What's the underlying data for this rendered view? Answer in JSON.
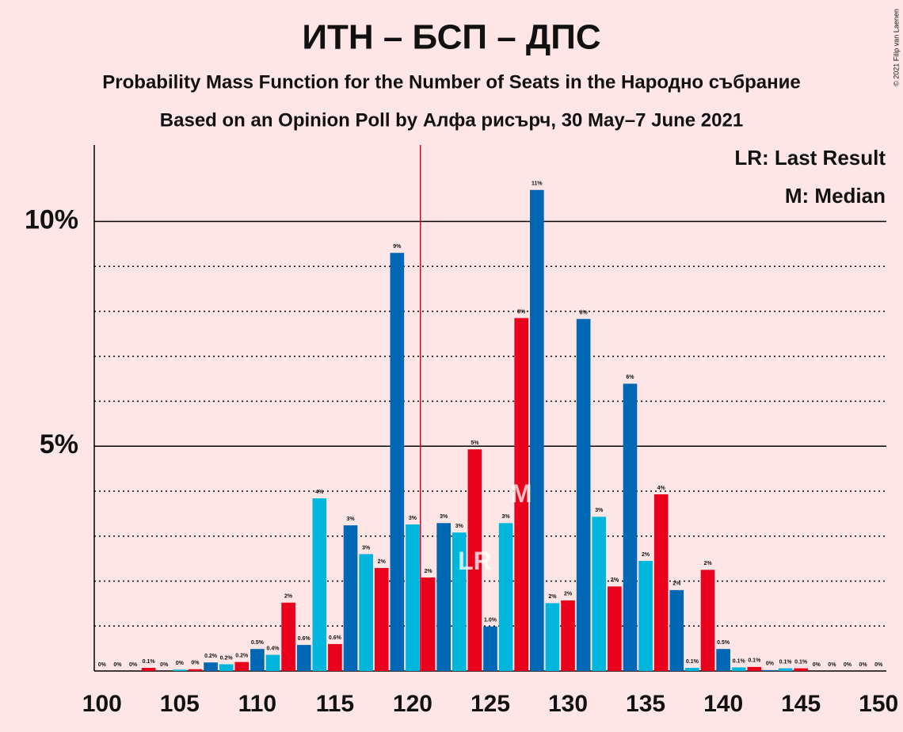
{
  "chart_data": {
    "type": "bar",
    "title": "ИТН – БСП – ДПС",
    "subtitle": "Probability Mass Function for the Number of Seats in the Народно събрание",
    "subtitle2": "Based on an Opinion Poll by Алфа рисърч, 30 May–7 June 2021",
    "copyright": "© 2021 Filip van Laenen",
    "legend": [
      "LR: Last Result",
      "M: Median"
    ],
    "x": [
      100,
      101,
      102,
      103,
      104,
      105,
      106,
      107,
      108,
      109,
      110,
      111,
      112,
      113,
      114,
      115,
      116,
      117,
      118,
      119,
      120,
      121,
      122,
      123,
      124,
      125,
      126,
      127,
      128,
      129,
      130,
      131,
      132,
      133,
      134,
      135,
      136,
      137,
      138,
      139,
      140,
      141,
      142,
      143,
      144,
      145,
      146,
      147,
      148,
      149,
      150
    ],
    "values": [
      0,
      0,
      0,
      0.07,
      0,
      0.03,
      0.04,
      0.19,
      0.15,
      0.2,
      0.49,
      0.36,
      1.52,
      0.58,
      3.84,
      0.6,
      3.24,
      2.6,
      2.29,
      9.3,
      3.26,
      2.08,
      3.29,
      3.08,
      4.93,
      0.99,
      3.29,
      7.85,
      10.7,
      1.51,
      1.57,
      7.83,
      3.43,
      1.88,
      6.39,
      2.45,
      3.93,
      1.8,
      0.07,
      2.25,
      0.49,
      0.08,
      0.09,
      0.02,
      0.06,
      0.06,
      0,
      0,
      0,
      0,
      0
    ],
    "value_labels": [
      "0%",
      "0%",
      "0%",
      "0.1%",
      "0%",
      "0%",
      "0%",
      "0.2%",
      "0.2%",
      "0.2%",
      "0.5%",
      "0.4%",
      "2%",
      "0.6%",
      "4%",
      "0.6%",
      "3%",
      "3%",
      "2%",
      "9%",
      "3%",
      "2%",
      "3%",
      "3%",
      "5%",
      "1.0%",
      "3%",
      "8%",
      "11%",
      "2%",
      "2%",
      "8%",
      "3%",
      "2%",
      "6%",
      "2%",
      "4%",
      "2%",
      "0.1%",
      "2%",
      "0.5%",
      "0.1%",
      "0.1%",
      "0%",
      "0.1%",
      "0.1%",
      "0%",
      "0%",
      "0%",
      "0%",
      "0%"
    ],
    "colors": [
      "#e8001c",
      "#0067b4",
      "#00b6dc",
      "#e8001c",
      "#0067b4",
      "#00b6dc",
      "#e8001c",
      "#0067b4",
      "#00b6dc",
      "#e8001c",
      "#0067b4",
      "#00b6dc",
      "#e8001c",
      "#0067b4",
      "#00b6dc",
      "#e8001c",
      "#0067b4",
      "#00b6dc",
      "#e8001c",
      "#0067b4",
      "#00b6dc",
      "#e8001c",
      "#0067b4",
      "#00b6dc",
      "#e8001c",
      "#0067b4",
      "#00b6dc",
      "#e8001c",
      "#0067b4",
      "#00b6dc",
      "#e8001c",
      "#0067b4",
      "#00b6dc",
      "#e8001c",
      "#0067b4",
      "#00b6dc",
      "#e8001c",
      "#0067b4",
      "#00b6dc",
      "#e8001c",
      "#0067b4",
      "#00b6dc",
      "#e8001c",
      "#0067b4",
      "#00b6dc",
      "#e8001c",
      "#0067b4",
      "#00b6dc",
      "#e8001c",
      "#0067b4",
      "#00b6dc"
    ],
    "xlim": [
      99.5,
      150.5
    ],
    "xticks": [
      100,
      105,
      110,
      115,
      120,
      125,
      130,
      135,
      140,
      145,
      150
    ],
    "ylim": [
      0,
      11.7
    ],
    "yticks": [
      {
        "value": 5,
        "label": "5%"
      },
      {
        "value": 10,
        "label": "10%"
      }
    ],
    "minor_yticks": [
      1,
      2,
      3,
      4,
      6,
      7,
      8,
      9
    ],
    "threshold": 120.5,
    "threshold_color": "#e8001c",
    "annotations": [
      {
        "text": "LR",
        "x": 124,
        "y": 2.4
      },
      {
        "text": "M",
        "x": 127,
        "y": 3.9
      }
    ]
  }
}
